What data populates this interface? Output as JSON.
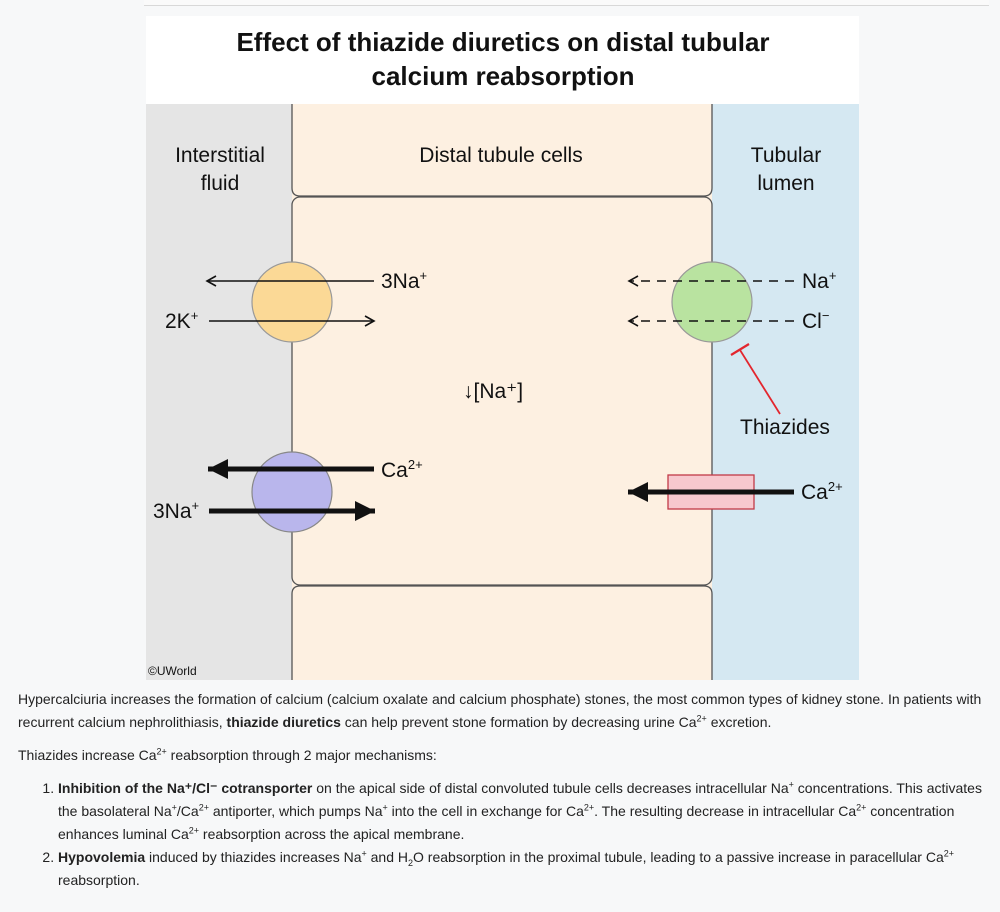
{
  "figure": {
    "title_line1": "Effect of thiazide diuretics on distal tubular",
    "title_line2": "calcium reabsorption",
    "regions": {
      "interstitial_line1": "Interstitial",
      "interstitial_line2": "fluid",
      "cells": "Distal tubule cells",
      "lumen_line1": "Tubular",
      "lumen_line2": "lumen"
    },
    "pump": {
      "out_label": "3Na",
      "out_sup": "+",
      "in_label": "2K",
      "in_sup": "+"
    },
    "cotransporter": {
      "na_label": "Na",
      "na_sup": "+",
      "cl_label": "Cl",
      "cl_sup": "−"
    },
    "center_label": "↓[Na⁺]",
    "inhibitor": "Thiazides",
    "antiporter": {
      "ca_label": "Ca",
      "ca_sup": "2+",
      "na_label": "3Na",
      "na_sup": "+"
    },
    "channel": {
      "ca_label": "Ca",
      "ca_sup": "2+"
    },
    "copyright": "©UWorld",
    "colors": {
      "interstitial": "#e5e5e5",
      "cell": "#fdf0e1",
      "lumen": "#d5e8f2",
      "pump": "#fbd996",
      "cotransporter": "#b9e3a0",
      "antiporter": "#b9b6ec",
      "channel": "#f7c8ce",
      "inhibitor": "#e3262e"
    }
  },
  "text": {
    "p1_a": "Hypercalciuria increases the formation of calcium (calcium oxalate and calcium phosphate) stones, the most common types of kidney stone.  In patients with recurrent calcium nephrolithiasis, ",
    "p1_b": "thiazide diuretics",
    "p1_c": " can help prevent stone formation by decreasing urine Ca",
    "p1_sup": "2+",
    "p1_d": " excretion.",
    "p2_a": "Thiazides increase Ca",
    "p2_sup": "2+",
    "p2_b": " reabsorption through 2 major mechanisms:",
    "li1_bold": "Inhibition of the Na⁺/Cl⁻ cotransporter",
    "li1_a": " on the apical side of distal convoluted tubule cells decreases intracellular Na",
    "li1_sup1": "+",
    "li1_b": " concentrations.  This activates the basolateral Na",
    "li1_sup2": "+",
    "li1_c": "/Ca",
    "li1_sup3": "2+",
    "li1_d": " antiporter, which pumps Na",
    "li1_sup4": "+",
    "li1_e": " into the cell in exchange for Ca",
    "li1_sup5": "2+",
    "li1_f": ".  The resulting decrease in intracellular Ca",
    "li1_sup6": "2+",
    "li1_g": " concentration enhances luminal Ca",
    "li1_sup7": "2+",
    "li1_h": " reabsorption across the apical membrane.",
    "li2_bold": "Hypovolemia",
    "li2_a": " induced by thiazides increases Na",
    "li2_sup1": "+",
    "li2_b": " and H",
    "li2_sub": "2",
    "li2_c": "O reabsorption in the proximal tubule, leading to a passive increase in paracellular Ca",
    "li2_sup2": "2+",
    "li2_d": " reabsorption."
  }
}
